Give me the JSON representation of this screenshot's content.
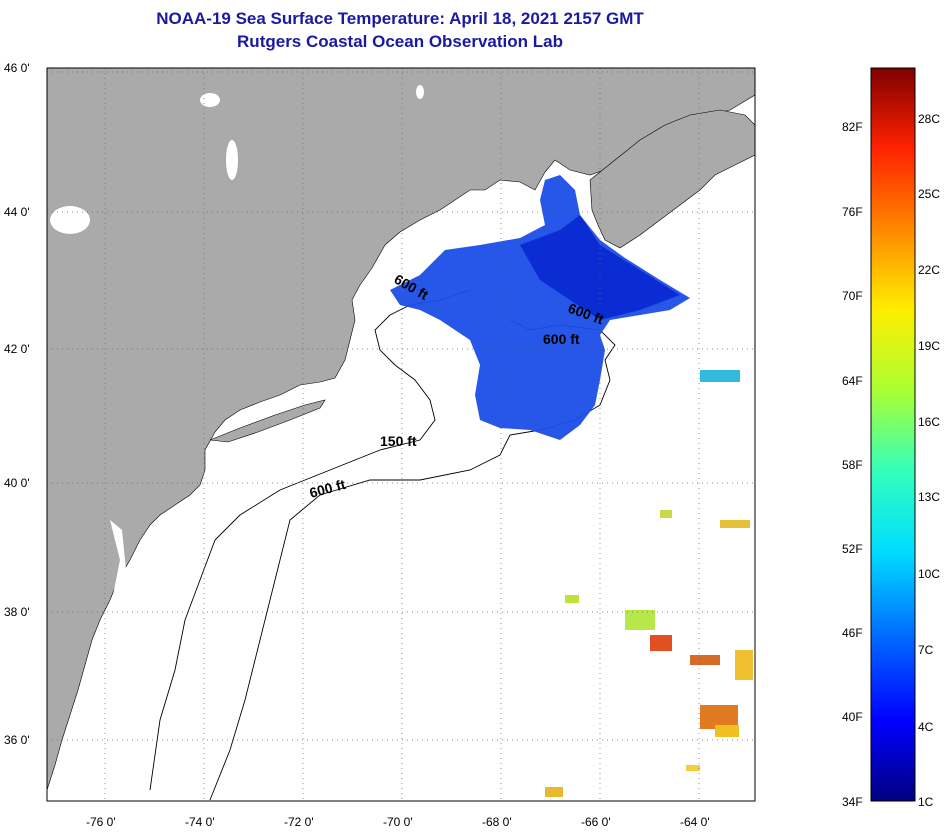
{
  "title": {
    "line1": "NOAA-19 Sea Surface Temperature:  April 18, 2021 2157 GMT",
    "line2": "Rutgers Coastal Ocean Observation Lab"
  },
  "axes": {
    "lat_labels": [
      "46 0'",
      "44 0'",
      "42 0'",
      "40 0'",
      "38 0'",
      "36 0'"
    ],
    "lon_labels": [
      "-76 0'",
      "-74 0'",
      "-72 0'",
      "-70 0'",
      "-68 0'",
      "-66 0'",
      "-64 0'"
    ]
  },
  "contours": {
    "labels": [
      "600 ft",
      "600 ft",
      "600 ft",
      "150 ft",
      "600 ft"
    ]
  },
  "colorbar": {
    "fahrenheit": [
      "82F",
      "76F",
      "70F",
      "64F",
      "58F",
      "52F",
      "46F",
      "40F",
      "34F"
    ],
    "celsius": [
      "28C",
      "25C",
      "22C",
      "19C",
      "16C",
      "13C",
      "10C",
      "7C",
      "4C",
      "1C"
    ]
  },
  "colors": {
    "land": "#aaaaaa",
    "ocean": "#ffffff",
    "title": "#1a1aa0"
  }
}
